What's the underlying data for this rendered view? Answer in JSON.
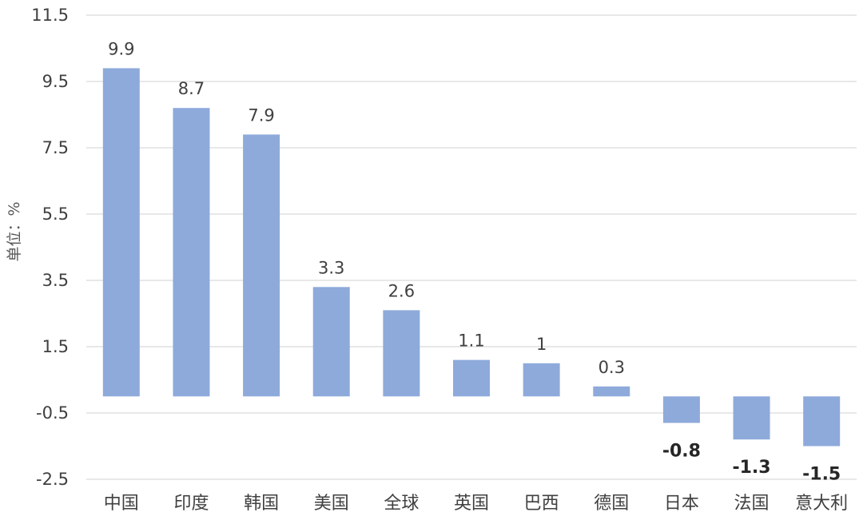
{
  "chart_data": {
    "type": "bar",
    "title": "",
    "xlabel": "",
    "ylabel": "单位：%",
    "categories": [
      "中国",
      "印度",
      "韩国",
      "美国",
      "全球",
      "英国",
      "巴西",
      "德国",
      "日本",
      "法国",
      "意大利"
    ],
    "values": [
      9.9,
      8.7,
      7.9,
      3.3,
      2.6,
      1.1,
      1,
      0.3,
      -0.8,
      -1.3,
      -1.5
    ],
    "data_labels": [
      "9.9",
      "8.7",
      "7.9",
      "3.3",
      "2.6",
      "1.1",
      "1",
      "0.3",
      "-0.8",
      "-1.3",
      "-1.5"
    ],
    "y_ticks": [
      11.5,
      9.5,
      7.5,
      5.5,
      3.5,
      1.5,
      -0.5,
      -2.5
    ],
    "y_tick_labels": [
      "11.5",
      "9.5",
      "7.5",
      "5.5",
      "3.5",
      "1.5",
      "-0.5",
      "-2.5"
    ],
    "ylim": [
      -2.5,
      11.5
    ],
    "grid": true,
    "legend": "none",
    "bar_color": "#8eaadb"
  }
}
